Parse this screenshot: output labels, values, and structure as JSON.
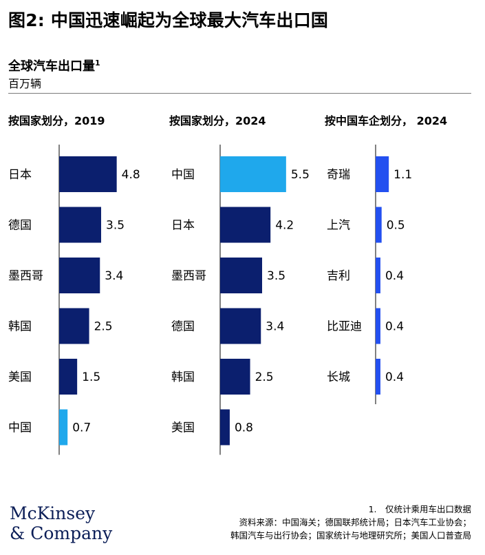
{
  "title": "图2: 中国迅速崛起为全球最大汽车出口国",
  "subtitle": "全球汽车出口量",
  "subtitle_footnote": "1",
  "unit": "百万辆",
  "colors": {
    "navy": "#0b1f6e",
    "china_light": "#1fa8ec",
    "brand_blue": "#2350f0",
    "axis": "#000000",
    "logo": "#0b1e57"
  },
  "chart_data": [
    {
      "type": "bar",
      "orientation": "horizontal",
      "title": "按国家划分，2019",
      "categories": [
        "日本",
        "德国",
        "墨西哥",
        "韩国",
        "美国",
        "中国"
      ],
      "values": [
        4.8,
        3.5,
        3.4,
        2.5,
        1.5,
        0.7
      ],
      "value_labels": [
        "4.8",
        "3.5",
        "3.4",
        "2.5",
        "1.5",
        "0.7"
      ],
      "highlight": "中国",
      "unit": "百万辆",
      "xlim": [
        0,
        5.5
      ]
    },
    {
      "type": "bar",
      "orientation": "horizontal",
      "title": "按国家划分，2024",
      "categories": [
        "中国",
        "日本",
        "墨西哥",
        "德国",
        "韩国",
        "美国"
      ],
      "values": [
        5.5,
        4.2,
        3.5,
        3.4,
        2.5,
        0.8
      ],
      "value_labels": [
        "5.5",
        "4.2",
        "3.5",
        "3.4",
        "2.5",
        "0.8"
      ],
      "highlight": "中国",
      "unit": "百万辆",
      "xlim": [
        0,
        5.5
      ]
    },
    {
      "type": "bar",
      "orientation": "horizontal",
      "title": "按中国车企划分， 2024",
      "categories": [
        "奇瑞",
        "上汽",
        "吉利",
        "比亚迪",
        "长城"
      ],
      "values": [
        1.1,
        0.5,
        0.4,
        0.4,
        0.4
      ],
      "value_labels": [
        "1.1",
        "0.5",
        "0.4",
        "0.4",
        "0.4"
      ],
      "highlight": null,
      "unit": "百万辆",
      "xlim": [
        0,
        5.5
      ]
    }
  ],
  "logo": {
    "line1": "McKinsey",
    "line2": "& Company"
  },
  "notes": {
    "footnote": "1.　仅统计乘用车出口数据",
    "sources": [
      "资料来源：中国海关；德国联邦统计局；日本汽车工业协会；",
      "韩国汽车与出行协会；国家统计与地理研究所；美国人口普查局"
    ]
  }
}
